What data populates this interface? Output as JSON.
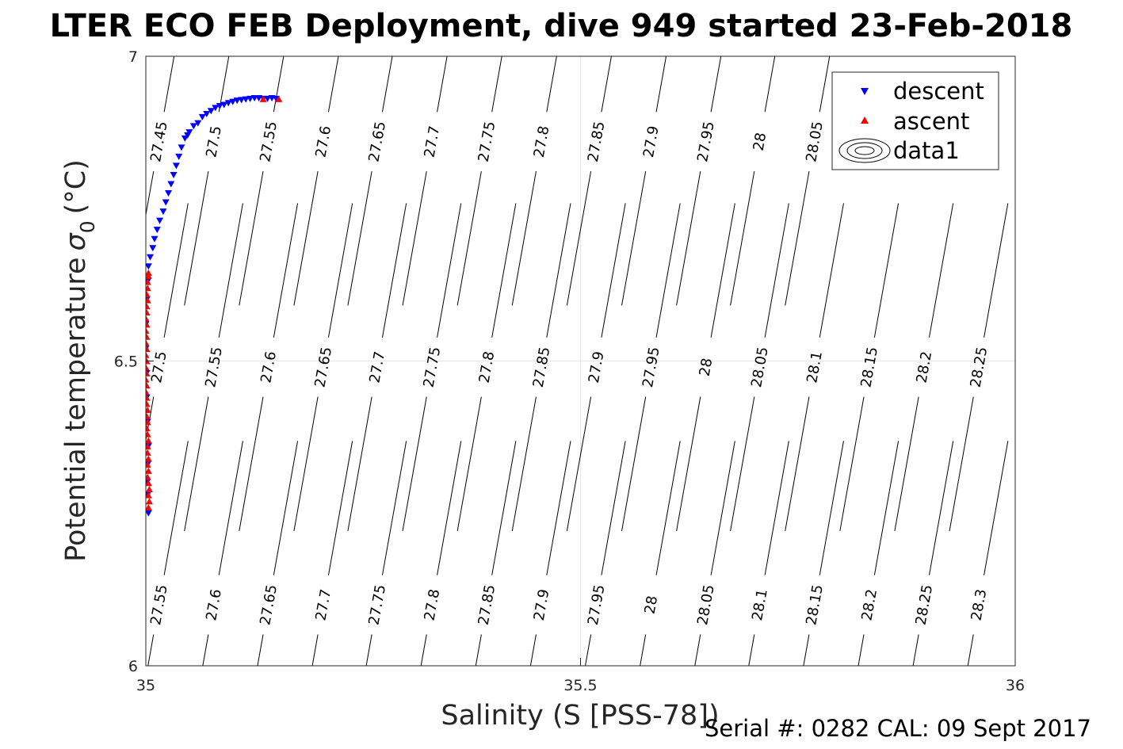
{
  "chart_data": {
    "type": "scatter",
    "title": "LTER ECO FEB Deployment, dive 949 started 23-Feb-2018",
    "xlabel": "Salinity (S [PSS-78])",
    "ylabel": "Potential temperature",
    "ylabel_symbol": "σ",
    "ylabel_subscript": "0",
    "ylabel_unit": "(°C)",
    "xlim": [
      35,
      36
    ],
    "ylim": [
      6,
      7
    ],
    "xticks": [
      "35",
      "35.5",
      "36"
    ],
    "yticks": [
      "6",
      "6.5",
      "7"
    ],
    "grid": true,
    "legend_position": "top-right",
    "legend": [
      "descent",
      "ascent",
      "data1"
    ],
    "series": [
      {
        "name": "descent",
        "marker": "triangle-down",
        "color": "#0000ff",
        "points": [
          [
            35.003,
            6.25
          ],
          [
            35.002,
            6.28
          ],
          [
            35.001,
            6.3
          ],
          [
            35.002,
            6.33
          ],
          [
            35.003,
            6.36
          ],
          [
            35.002,
            6.4
          ],
          [
            35.001,
            6.44
          ],
          [
            35.001,
            6.48
          ],
          [
            35.0,
            6.52
          ],
          [
            35.0,
            6.56
          ],
          [
            35.001,
            6.6
          ],
          [
            35.002,
            6.63
          ],
          [
            35.003,
            6.655
          ],
          [
            35.005,
            6.67
          ],
          [
            35.008,
            6.685
          ],
          [
            35.01,
            6.7
          ],
          [
            35.013,
            6.715
          ],
          [
            35.016,
            6.73
          ],
          [
            35.02,
            6.745
          ],
          [
            35.023,
            6.76
          ],
          [
            35.026,
            6.775
          ],
          [
            35.029,
            6.79
          ],
          [
            35.032,
            6.805
          ],
          [
            35.035,
            6.82
          ],
          [
            35.038,
            6.835
          ],
          [
            35.041,
            6.85
          ],
          [
            35.045,
            6.865
          ],
          [
            35.048,
            6.87
          ],
          [
            35.05,
            6.875
          ],
          [
            35.055,
            6.885
          ],
          [
            35.06,
            6.89
          ],
          [
            35.065,
            6.9
          ],
          [
            35.07,
            6.905
          ],
          [
            35.075,
            6.91
          ],
          [
            35.08,
            6.915
          ],
          [
            35.085,
            6.918
          ],
          [
            35.09,
            6.92
          ],
          [
            35.095,
            6.923
          ],
          [
            35.1,
            6.925
          ],
          [
            35.105,
            6.927
          ],
          [
            35.11,
            6.928
          ],
          [
            35.115,
            6.929
          ],
          [
            35.12,
            6.93
          ],
          [
            35.125,
            6.931
          ],
          [
            35.13,
            6.931
          ],
          [
            35.135,
            6.93
          ],
          [
            35.14,
            6.93
          ],
          [
            35.145,
            6.931
          ],
          [
            35.15,
            6.93
          ]
        ]
      },
      {
        "name": "ascent",
        "marker": "triangle-up",
        "color": "#ff0000",
        "points": [
          [
            35.003,
            6.26
          ],
          [
            35.004,
            6.27
          ],
          [
            35.003,
            6.28
          ],
          [
            35.004,
            6.29
          ],
          [
            35.003,
            6.3
          ],
          [
            35.002,
            6.31
          ],
          [
            35.003,
            6.32
          ],
          [
            35.002,
            6.33
          ],
          [
            35.003,
            6.34
          ],
          [
            35.002,
            6.35
          ],
          [
            35.002,
            6.36
          ],
          [
            35.003,
            6.37
          ],
          [
            35.002,
            6.38
          ],
          [
            35.001,
            6.39
          ],
          [
            35.002,
            6.4
          ],
          [
            35.001,
            6.41
          ],
          [
            35.002,
            6.42
          ],
          [
            35.001,
            6.43
          ],
          [
            35.001,
            6.44
          ],
          [
            35.0,
            6.45
          ],
          [
            35.001,
            6.46
          ],
          [
            35.0,
            6.47
          ],
          [
            35.001,
            6.48
          ],
          [
            35.0,
            6.49
          ],
          [
            35.001,
            6.5
          ],
          [
            35.0,
            6.51
          ],
          [
            35.001,
            6.52
          ],
          [
            35.0,
            6.53
          ],
          [
            35.001,
            6.54
          ],
          [
            35.0,
            6.55
          ],
          [
            35.001,
            6.56
          ],
          [
            35.0,
            6.57
          ],
          [
            35.001,
            6.58
          ],
          [
            35.001,
            6.59
          ],
          [
            35.002,
            6.6
          ],
          [
            35.001,
            6.61
          ],
          [
            35.002,
            6.62
          ],
          [
            35.002,
            6.63
          ],
          [
            35.003,
            6.64
          ],
          [
            35.003,
            6.645
          ],
          [
            35.135,
            6.93
          ],
          [
            35.153,
            6.93
          ]
        ]
      }
    ],
    "contours": {
      "color": "#000000",
      "levels": [
        27.45,
        27.5,
        27.55,
        27.6,
        27.65,
        27.7,
        27.75,
        27.8,
        27.85,
        27.9,
        27.95,
        28,
        28.05,
        28.1,
        28.15,
        28.2,
        28.25,
        28.3
      ],
      "labels": [
        {
          "text": "27.45",
          "x": 35.015,
          "y": 6.86
        },
        {
          "text": "27.5",
          "x": 35.078,
          "y": 6.86
        },
        {
          "text": "27.55",
          "x": 35.141,
          "y": 6.86
        },
        {
          "text": "27.6",
          "x": 35.204,
          "y": 6.86
        },
        {
          "text": "27.65",
          "x": 35.266,
          "y": 6.86
        },
        {
          "text": "27.7",
          "x": 35.329,
          "y": 6.86
        },
        {
          "text": "27.75",
          "x": 35.392,
          "y": 6.86
        },
        {
          "text": "27.8",
          "x": 35.455,
          "y": 6.86
        },
        {
          "text": "27.85",
          "x": 35.518,
          "y": 6.86
        },
        {
          "text": "27.9",
          "x": 35.581,
          "y": 6.86
        },
        {
          "text": "27.95",
          "x": 35.644,
          "y": 6.86
        },
        {
          "text": "28",
          "x": 35.706,
          "y": 6.86
        },
        {
          "text": "28.05",
          "x": 35.769,
          "y": 6.86
        },
        {
          "text": "27.5",
          "x": 35.015,
          "y": 6.49
        },
        {
          "text": "27.55",
          "x": 35.078,
          "y": 6.49
        },
        {
          "text": "27.6",
          "x": 35.141,
          "y": 6.49
        },
        {
          "text": "27.65",
          "x": 35.204,
          "y": 6.49
        },
        {
          "text": "27.7",
          "x": 35.266,
          "y": 6.49
        },
        {
          "text": "27.75",
          "x": 35.329,
          "y": 6.49
        },
        {
          "text": "27.8",
          "x": 35.392,
          "y": 6.49
        },
        {
          "text": "27.85",
          "x": 35.455,
          "y": 6.49
        },
        {
          "text": "27.9",
          "x": 35.518,
          "y": 6.49
        },
        {
          "text": "27.95",
          "x": 35.581,
          "y": 6.49
        },
        {
          "text": "28",
          "x": 35.644,
          "y": 6.49
        },
        {
          "text": "28.05",
          "x": 35.706,
          "y": 6.49
        },
        {
          "text": "28.1",
          "x": 35.769,
          "y": 6.49
        },
        {
          "text": "28.15",
          "x": 35.832,
          "y": 6.49
        },
        {
          "text": "28.2",
          "x": 35.895,
          "y": 6.49
        },
        {
          "text": "28.25",
          "x": 35.958,
          "y": 6.49
        },
        {
          "text": "27.55",
          "x": 35.015,
          "y": 6.1
        },
        {
          "text": "27.6",
          "x": 35.078,
          "y": 6.1
        },
        {
          "text": "27.65",
          "x": 35.141,
          "y": 6.1
        },
        {
          "text": "27.7",
          "x": 35.204,
          "y": 6.1
        },
        {
          "text": "27.75",
          "x": 35.266,
          "y": 6.1
        },
        {
          "text": "27.8",
          "x": 35.329,
          "y": 6.1
        },
        {
          "text": "27.85",
          "x": 35.392,
          "y": 6.1
        },
        {
          "text": "27.9",
          "x": 35.455,
          "y": 6.1
        },
        {
          "text": "27.95",
          "x": 35.518,
          "y": 6.1
        },
        {
          "text": "28",
          "x": 35.581,
          "y": 6.1
        },
        {
          "text": "28.05",
          "x": 35.644,
          "y": 6.1
        },
        {
          "text": "28.1",
          "x": 35.706,
          "y": 6.1
        },
        {
          "text": "28.15",
          "x": 35.769,
          "y": 6.1
        },
        {
          "text": "28.2",
          "x": 35.832,
          "y": 6.1
        },
        {
          "text": "28.25",
          "x": 35.895,
          "y": 6.1
        },
        {
          "text": "28.3",
          "x": 35.958,
          "y": 6.1
        }
      ]
    }
  },
  "footer": {
    "serial_text": "Serial #: 0282  CAL: 09 Sept 2017"
  }
}
